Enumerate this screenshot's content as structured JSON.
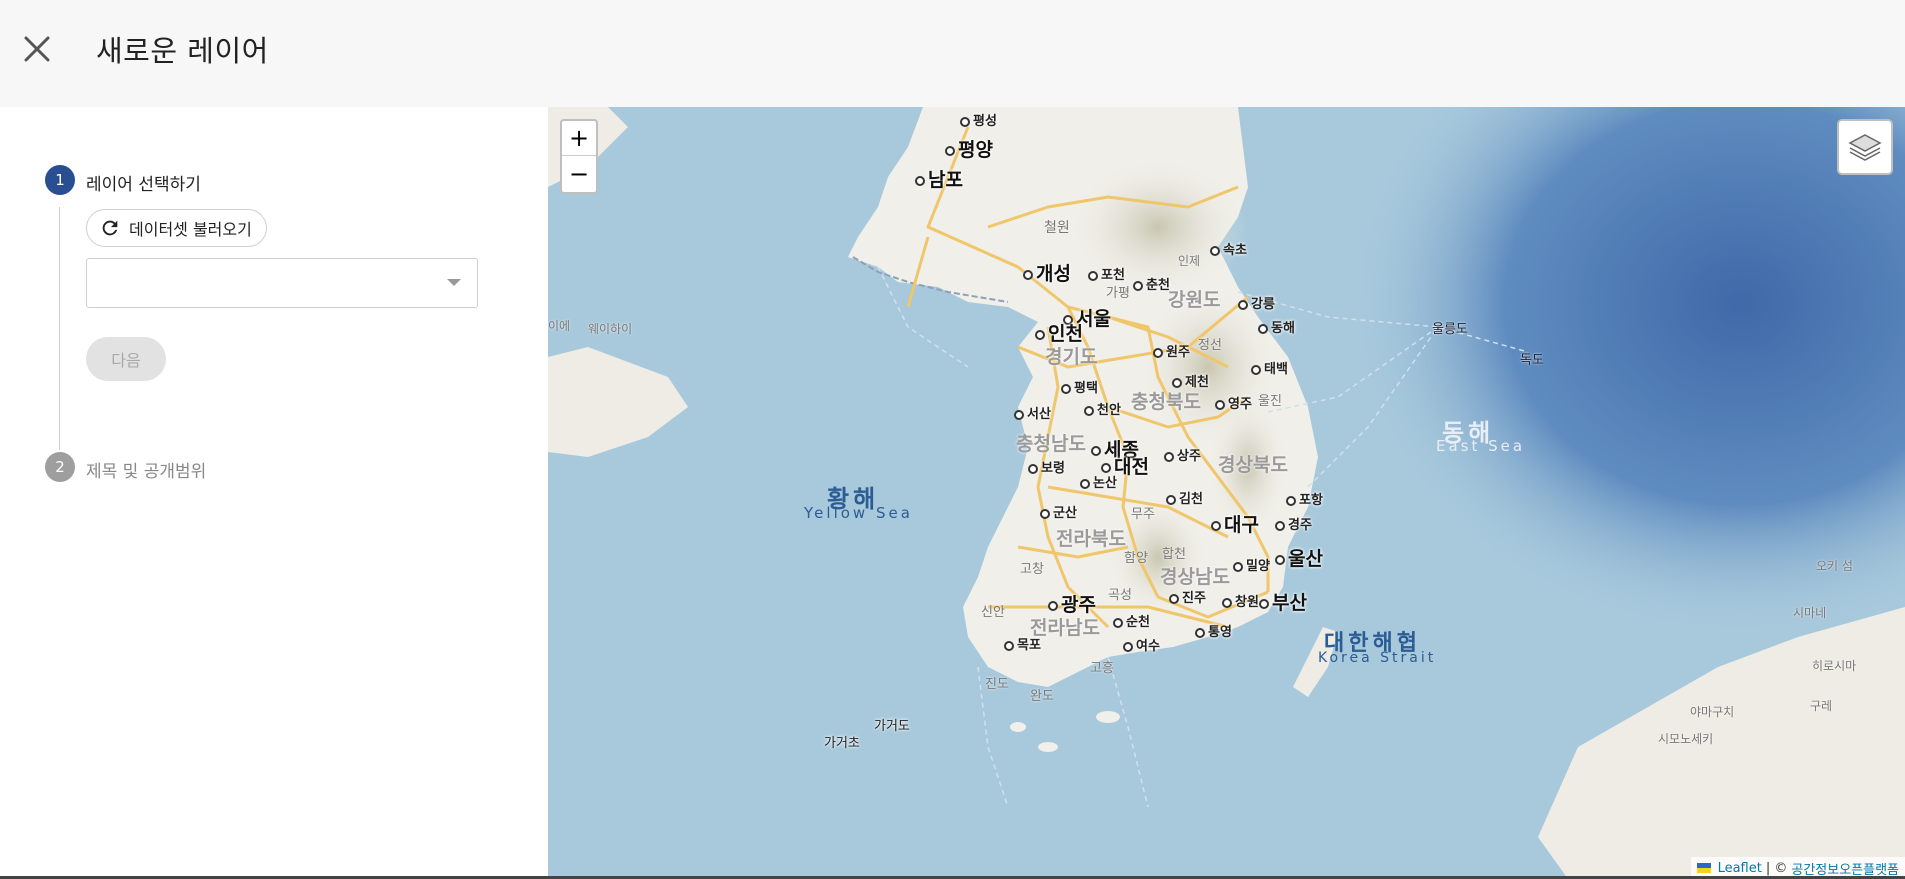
{
  "header": {
    "title": "새로운 레이어"
  },
  "steps": [
    {
      "number": "1",
      "label": "레이어 선택하기"
    },
    {
      "number": "2",
      "label": "제목 및 공개범위"
    }
  ],
  "step1": {
    "load_dataset_label": "데이터셋 불러오기",
    "select_value": "",
    "next_label": "다음"
  },
  "map": {
    "zoom_in": "+",
    "zoom_out": "−",
    "attribution": {
      "leaflet": "Leaflet",
      "separator": "| ©",
      "provider": "공간정보오픈플랫폼"
    },
    "labels": {
      "pyeongseong": "평성",
      "pyongyang": "평양",
      "nampo": "남포",
      "cheorwon": "철원",
      "kaesong": "개성",
      "pocheon": "포천",
      "inje": "인제",
      "sokcho": "속초",
      "gapyeong": "가평",
      "chuncheon": "춘천",
      "gangwon": "강원도",
      "gangneung": "강릉",
      "seoul": "서울",
      "incheon": "인천",
      "donghae": "동해",
      "ulleungdo": "울릉도",
      "dokdo": "독도",
      "weihai": "웨이하이",
      "weihai_edge": "이에",
      "gyeonggi": "경기도",
      "wonju": "원주",
      "jeongseon": "정선",
      "taebaek": "태백",
      "jecheon": "제천",
      "pyeongtaek": "평택",
      "chungbuk": "충청북도",
      "uljin": "울진",
      "yeongju": "영주",
      "seosan": "서산",
      "cheonan": "천안",
      "east_sea_ko": "동해",
      "east_sea_en": "East Sea",
      "chungnam": "충청남도",
      "sejong": "세종",
      "sangju": "상주",
      "boryeong": "보령",
      "daejeon": "대전",
      "gyeongbuk": "경상북도",
      "nonsan": "논산",
      "yellow_sea_ko": "황해",
      "yellow_sea_en": "Yellow Sea",
      "gimcheon": "김천",
      "pohang": "포항",
      "gunsan": "군산",
      "muju": "무주",
      "daegu": "대구",
      "gyeongju": "경주",
      "jeonbuk": "전라북도",
      "hapcheon": "합천",
      "hamyang": "함양",
      "gochang": "고창",
      "miryang": "밀양",
      "ulsan": "울산",
      "gyeongnam": "경상남도",
      "okiisland": "오키 섬",
      "gwangju": "광주",
      "gokseong": "곡성",
      "jinju": "진주",
      "changwon": "창원",
      "busan": "부산",
      "sinan": "신안",
      "jeonnam": "전라남도",
      "suncheon": "순천",
      "tongyeong": "통영",
      "shimane": "시마네",
      "korea_strait_ko": "대한해협",
      "korea_strait_en": "Korea Strait",
      "mokpo": "목포",
      "yeosu": "여수",
      "hiroshima": "히로시마",
      "goheung": "고흥",
      "jindo": "진도",
      "wando": "완도",
      "gageodo": "가거도",
      "gageocho": "가거초",
      "yamaguchi": "야마구치",
      "gure": "구레",
      "shimonoseki": "시모노세키"
    }
  },
  "colors": {
    "accent": "#294e91",
    "step_inactive": "#9e9e9e",
    "header_bg": "#f7f7f7",
    "sea": "#a8c9dc",
    "deep_sea": "#4d77b3",
    "land": "#f0efe9",
    "road": "#f0c66a"
  }
}
